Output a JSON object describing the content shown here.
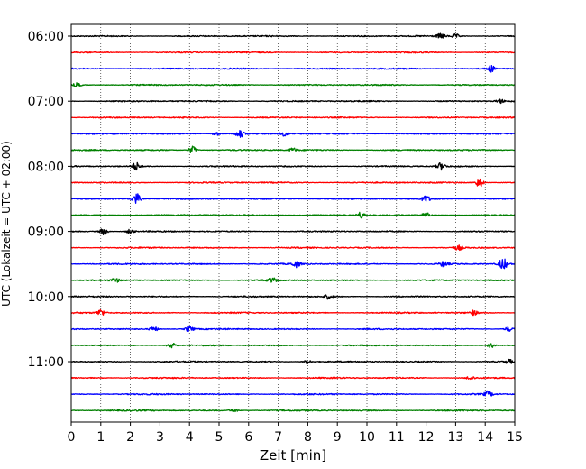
{
  "chart_data": {
    "type": "line",
    "title": "",
    "xlabel": "Zeit  [min]",
    "ylabel": "UTC (Lokalzeit = UTC + 02:00)",
    "xlim": [
      0,
      15
    ],
    "x_ticks": [
      0,
      1,
      2,
      3,
      4,
      5,
      6,
      7,
      8,
      9,
      10,
      11,
      12,
      13,
      14,
      15
    ],
    "y_tick_labels": [
      "06:00",
      "07:00",
      "08:00",
      "09:00",
      "10:00",
      "11:00"
    ],
    "trace_interval_minutes": 15,
    "first_trace_start": "06:00",
    "grid": "vertical dotted lines at each minute",
    "legend": "none",
    "color_cycle": [
      "#000000",
      "#ff0000",
      "#0000ff",
      "#008000"
    ],
    "traces": [
      {
        "start": "06:00",
        "color": "black",
        "events": [
          [
            12.5,
            0.6
          ],
          [
            13.0,
            0.5
          ]
        ]
      },
      {
        "start": "06:15",
        "color": "red",
        "events": []
      },
      {
        "start": "06:30",
        "color": "blue",
        "events": [
          [
            14.2,
            0.8
          ]
        ]
      },
      {
        "start": "06:45",
        "color": "green",
        "events": [
          [
            0.2,
            0.5
          ]
        ]
      },
      {
        "start": "07:00",
        "color": "black",
        "events": [
          [
            14.5,
            0.5
          ]
        ]
      },
      {
        "start": "07:15",
        "color": "red",
        "events": []
      },
      {
        "start": "07:30",
        "color": "blue",
        "events": [
          [
            5.7,
            1.0
          ],
          [
            4.9,
            0.5
          ],
          [
            7.2,
            0.5
          ]
        ]
      },
      {
        "start": "07:45",
        "color": "green",
        "events": [
          [
            4.1,
            1.0
          ],
          [
            7.5,
            0.5
          ]
        ]
      },
      {
        "start": "08:00",
        "color": "black",
        "events": [
          [
            2.2,
            1.0
          ],
          [
            12.5,
            0.9
          ]
        ]
      },
      {
        "start": "08:15",
        "color": "red",
        "events": [
          [
            13.8,
            1.2
          ]
        ]
      },
      {
        "start": "08:30",
        "color": "blue",
        "events": [
          [
            2.2,
            1.5
          ],
          [
            12.0,
            0.8
          ]
        ]
      },
      {
        "start": "08:45",
        "color": "green",
        "events": [
          [
            9.8,
            0.8
          ],
          [
            12.0,
            0.6
          ]
        ]
      },
      {
        "start": "09:00",
        "color": "black",
        "events": [
          [
            1.1,
            0.9
          ],
          [
            2.0,
            0.5
          ]
        ]
      },
      {
        "start": "09:15",
        "color": "red",
        "events": [
          [
            13.1,
            0.6
          ]
        ]
      },
      {
        "start": "09:30",
        "color": "blue",
        "events": [
          [
            14.6,
            1.5
          ],
          [
            7.6,
            0.8
          ],
          [
            12.6,
            0.7
          ]
        ]
      },
      {
        "start": "09:45",
        "color": "green",
        "events": [
          [
            6.8,
            0.6
          ],
          [
            1.5,
            0.5
          ]
        ]
      },
      {
        "start": "10:00",
        "color": "black",
        "events": [
          [
            8.7,
            0.6
          ]
        ]
      },
      {
        "start": "10:15",
        "color": "red",
        "events": [
          [
            1.0,
            0.9
          ],
          [
            13.6,
            0.6
          ]
        ]
      },
      {
        "start": "10:30",
        "color": "blue",
        "events": [
          [
            4.0,
            0.8
          ],
          [
            2.8,
            0.6
          ],
          [
            14.8,
            0.6
          ]
        ]
      },
      {
        "start": "10:45",
        "color": "green",
        "events": [
          [
            3.4,
            0.6
          ],
          [
            14.2,
            0.6
          ]
        ]
      },
      {
        "start": "11:00",
        "color": "black",
        "events": [
          [
            8.0,
            0.5
          ],
          [
            14.8,
            0.5
          ]
        ]
      },
      {
        "start": "11:15",
        "color": "red",
        "events": [
          [
            13.5,
            0.5
          ]
        ]
      },
      {
        "start": "11:30",
        "color": "blue",
        "events": [
          [
            14.1,
            0.8
          ]
        ]
      },
      {
        "start": "11:45",
        "color": "green",
        "events": [
          [
            5.5,
            0.4
          ]
        ]
      }
    ]
  }
}
